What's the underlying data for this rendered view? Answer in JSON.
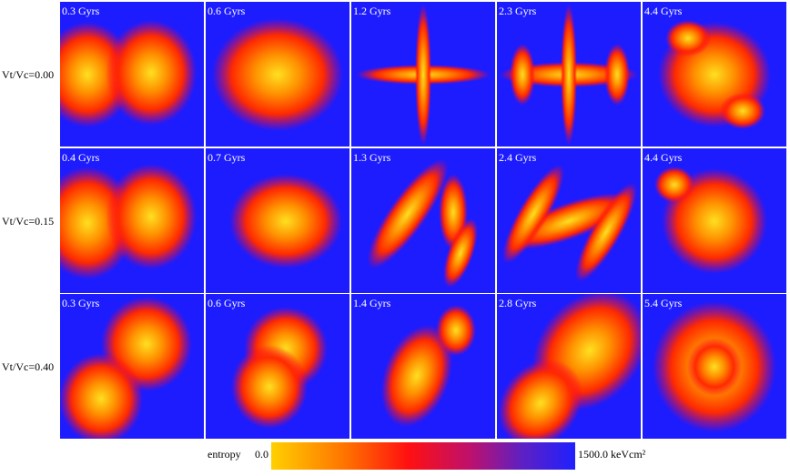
{
  "rows": [
    {
      "label": "Vt/Vc=0.00",
      "panels": [
        "0.3 Gyrs",
        "0.6 Gyrs",
        "1.2 Gyrs",
        "2.3 Gyrs",
        "4.4 Gyrs"
      ]
    },
    {
      "label": "Vt/Vc=0.15",
      "panels": [
        "0.4 Gyrs",
        "0.7 Gyrs",
        "1.3 Gyrs",
        "2.4 Gyrs",
        "4.4 Gyrs"
      ]
    },
    {
      "label": "Vt/Vc=0.40",
      "panels": [
        "0.3 Gyrs",
        "0.6 Gyrs",
        "1.4 Gyrs",
        "2.8 Gyrs",
        "5.4 Gyrs"
      ]
    }
  ],
  "colorbar": {
    "title": "entropy",
    "min": "0.0",
    "max": "1500.0 keVcm²"
  }
}
